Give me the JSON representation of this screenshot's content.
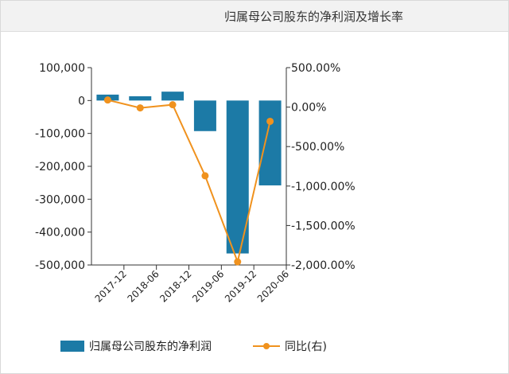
{
  "title": "归属母公司股东的净利润及增长率",
  "colors": {
    "bar": "#1c7aa6",
    "line": "#f0921e"
  },
  "chart_data": {
    "type": "bar",
    "categories": [
      "2017-12",
      "2018-06",
      "2018-12",
      "2019-06",
      "2019-12",
      "2020-06"
    ],
    "series": [
      {
        "name": "归属母公司股东的净利润",
        "type": "bar",
        "axis": "left",
        "values": [
          18000,
          13000,
          27000,
          -93000,
          -465000,
          -258000
        ]
      },
      {
        "name": "同比(右)",
        "type": "line",
        "axis": "right",
        "values": [
          90,
          -10,
          30,
          -870,
          -1960,
          -180
        ]
      }
    ],
    "y_left": {
      "min": -500000,
      "max": 100000,
      "ticks": [
        "100,000",
        "0",
        "-100,000",
        "-200,000",
        "-300,000",
        "-400,000",
        "-500,000"
      ]
    },
    "y_right": {
      "min": -2000,
      "max": 500,
      "ticks": [
        "500.00%",
        "0.00%",
        "-500.00%",
        "-1,000.00%",
        "-1,500.00%",
        "-2,000.00%"
      ]
    },
    "grid": false,
    "legend": "bottom"
  }
}
